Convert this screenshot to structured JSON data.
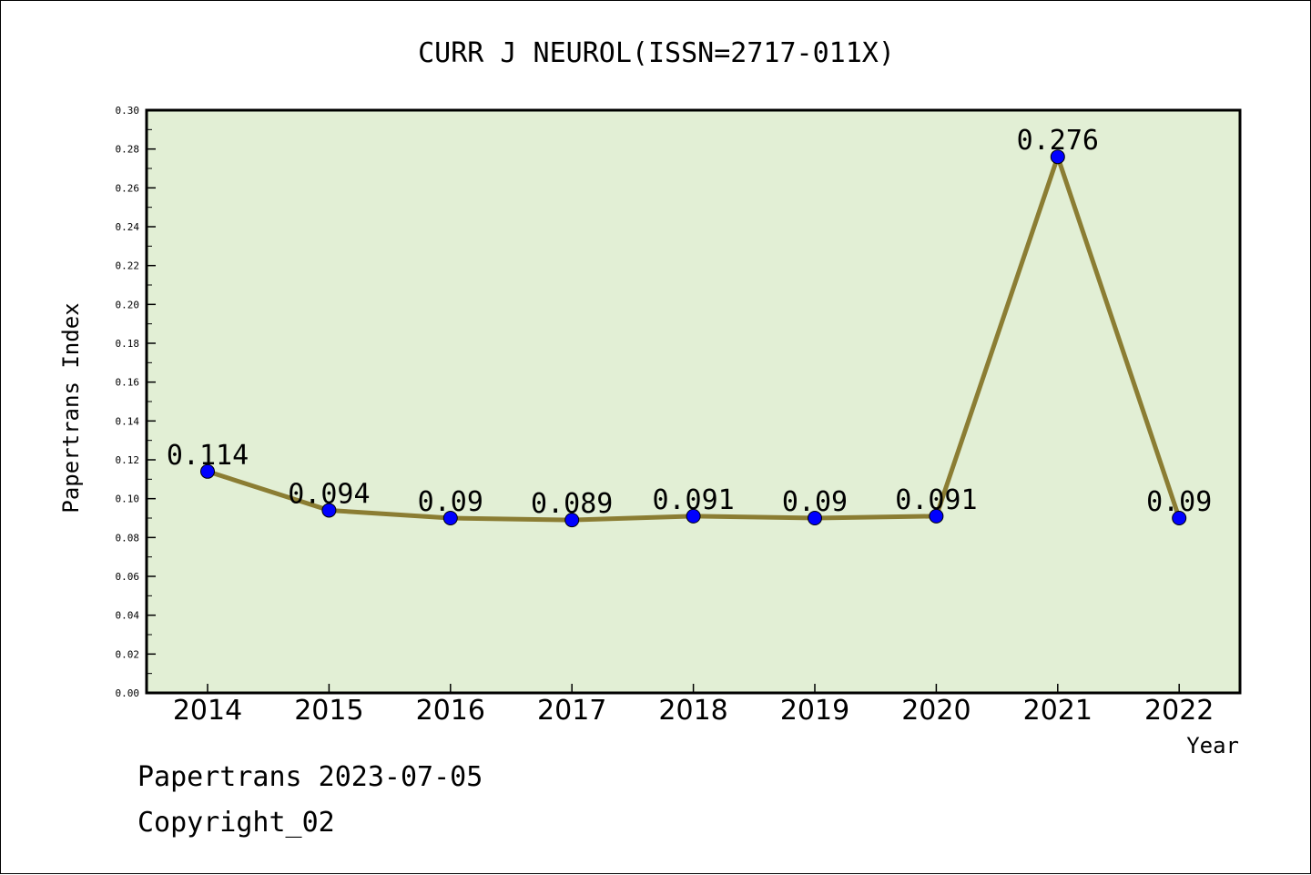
{
  "chart_data": {
    "type": "line",
    "title": "CURR J NEUROL(ISSN=2717-011X)",
    "xlabel": "Year",
    "ylabel": "Papertrans Index",
    "categories": [
      "2014",
      "2015",
      "2016",
      "2017",
      "2018",
      "2019",
      "2020",
      "2021",
      "2022"
    ],
    "values": [
      0.114,
      0.094,
      0.09,
      0.089,
      0.091,
      0.09,
      0.091,
      0.276,
      0.09
    ],
    "data_labels": [
      "0.114",
      "0.094",
      "0.09",
      "0.089",
      "0.091",
      "0.09",
      "0.091",
      "0.276",
      "0.09"
    ],
    "ylim": [
      0,
      0.3
    ],
    "yticks": [
      "0.00",
      "0.02",
      "0.04",
      "0.06",
      "0.08",
      "0.10",
      "0.12",
      "0.14",
      "0.16",
      "0.18",
      "0.20",
      "0.22",
      "0.24",
      "0.26",
      "0.28",
      "0.30"
    ],
    "grid": false,
    "colors": {
      "plot_background": "#e2efd5",
      "line": "#8b7d33",
      "marker": "#0000ff"
    }
  },
  "footer": {
    "date_line": "Papertrans 2023-07-05",
    "copyright_line": "Copyright_02"
  }
}
